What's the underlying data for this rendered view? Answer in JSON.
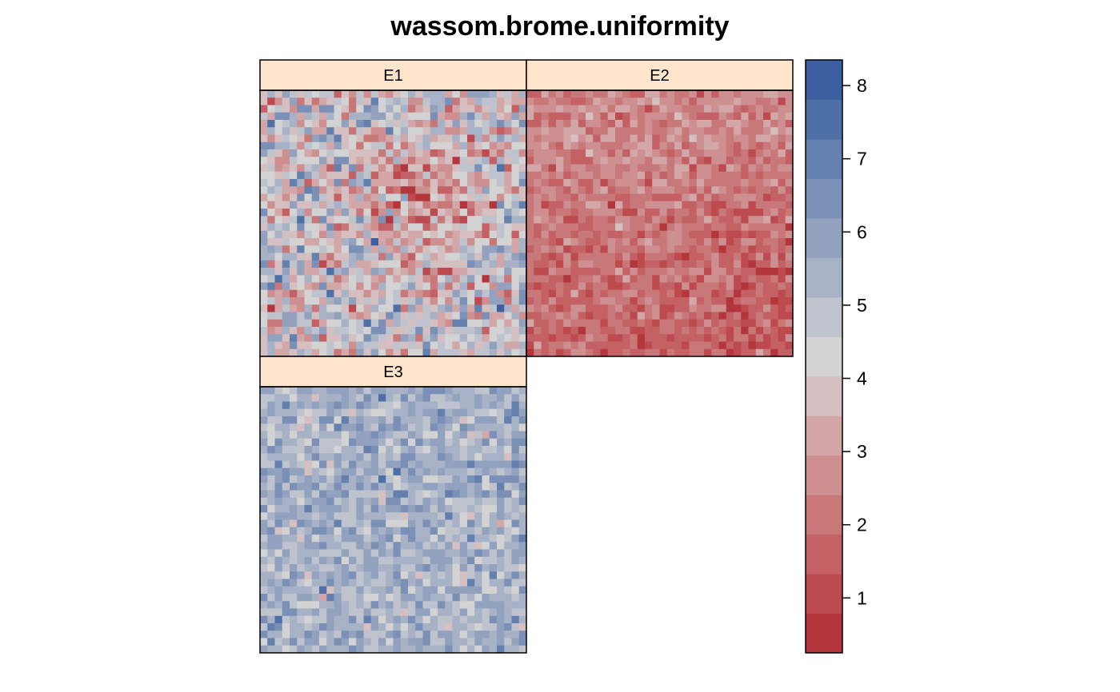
{
  "chart_data": {
    "type": "heatmap",
    "title": "wassom.brome.uniformity",
    "panels": [
      {
        "label": "E1",
        "rows": 36,
        "cols": 36,
        "mean": 4.3,
        "spread": 1.3,
        "pattern": "center_low"
      },
      {
        "label": "E2",
        "rows": 36,
        "cols": 36,
        "mean": 2.1,
        "spread": 0.55,
        "pattern": "top_light"
      },
      {
        "label": "E3",
        "rows": 36,
        "cols": 36,
        "mean": 5.4,
        "spread": 0.7,
        "pattern": "uniform"
      }
    ],
    "colorkey": {
      "range": [
        0.25,
        8.35
      ],
      "bins": 14,
      "ticks": [
        1,
        2,
        3,
        4,
        5,
        6,
        7,
        8
      ],
      "tick_labels": [
        "1",
        "2",
        "3",
        "4",
        "5",
        "6",
        "7",
        "8"
      ],
      "colors": [
        "#B2363B",
        "#BC4A4F",
        "#C36164",
        "#C9787A",
        "#CE8F90",
        "#D3A6A7",
        "#D5BFC0",
        "#D3D3D3",
        "#BEC3CD",
        "#A8B2C6",
        "#92A1BE",
        "#7B90B6",
        "#6480AE",
        "#4D70A6",
        "#3B5FA0"
      ]
    },
    "strip_color": "#FFE5CC",
    "layout": "2x2, panel E3 bottom-left"
  }
}
